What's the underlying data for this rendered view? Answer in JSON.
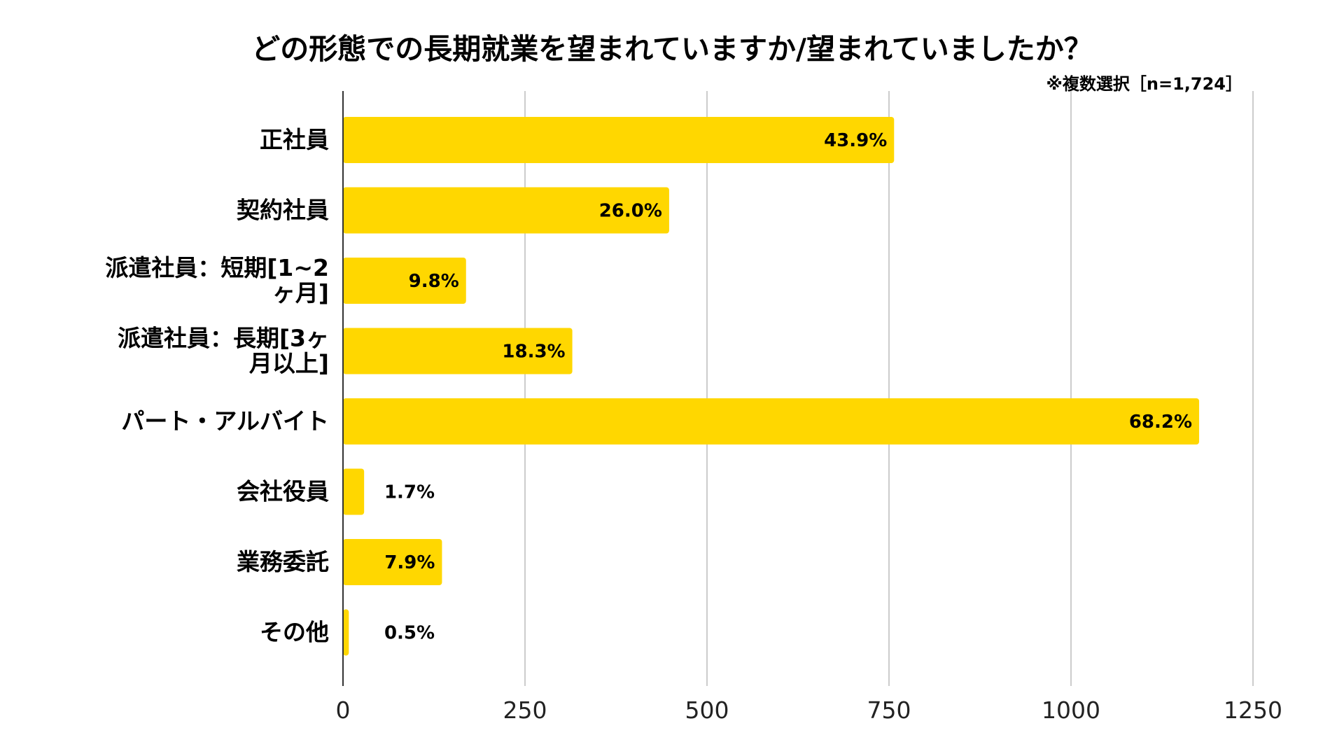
{
  "chart_data": {
    "type": "bar",
    "orientation": "horizontal",
    "title": "どの形態での長期就業を望まれていますか/望まれていましたか？",
    "note": "※複数選択［n=1,724］",
    "categories": [
      "正社員",
      "契約社員",
      "派遣社員：短期[1~2ヶ月]",
      "派遣社員：長期[3ヶ月以上]",
      "パート・アルバイト",
      "会社役員",
      "業務委託",
      "その他"
    ],
    "category_lines": [
      [
        "正社員"
      ],
      [
        "契約社員"
      ],
      [
        "派遣社員：短期[1~2",
        "ヶ月]"
      ],
      [
        "派遣社員：長期[3ヶ",
        "月以上]"
      ],
      [
        "パート・アルバイト"
      ],
      [
        "会社役員"
      ],
      [
        "業務委託"
      ],
      [
        "その他"
      ]
    ],
    "values": [
      757,
      448,
      169,
      315,
      1176,
      29,
      136,
      8
    ],
    "labels": [
      "43.9%",
      "26.0%",
      "9.8%",
      "18.3%",
      "68.2%",
      "1.7%",
      "7.9%",
      "0.5%"
    ],
    "xlim": [
      0,
      1250
    ],
    "xticks": [
      0,
      250,
      500,
      750,
      1000,
      1250
    ],
    "grid": true,
    "colors": {
      "bar": "#FFD700",
      "grid": "#CCCCCC",
      "axis": "#333333"
    }
  }
}
